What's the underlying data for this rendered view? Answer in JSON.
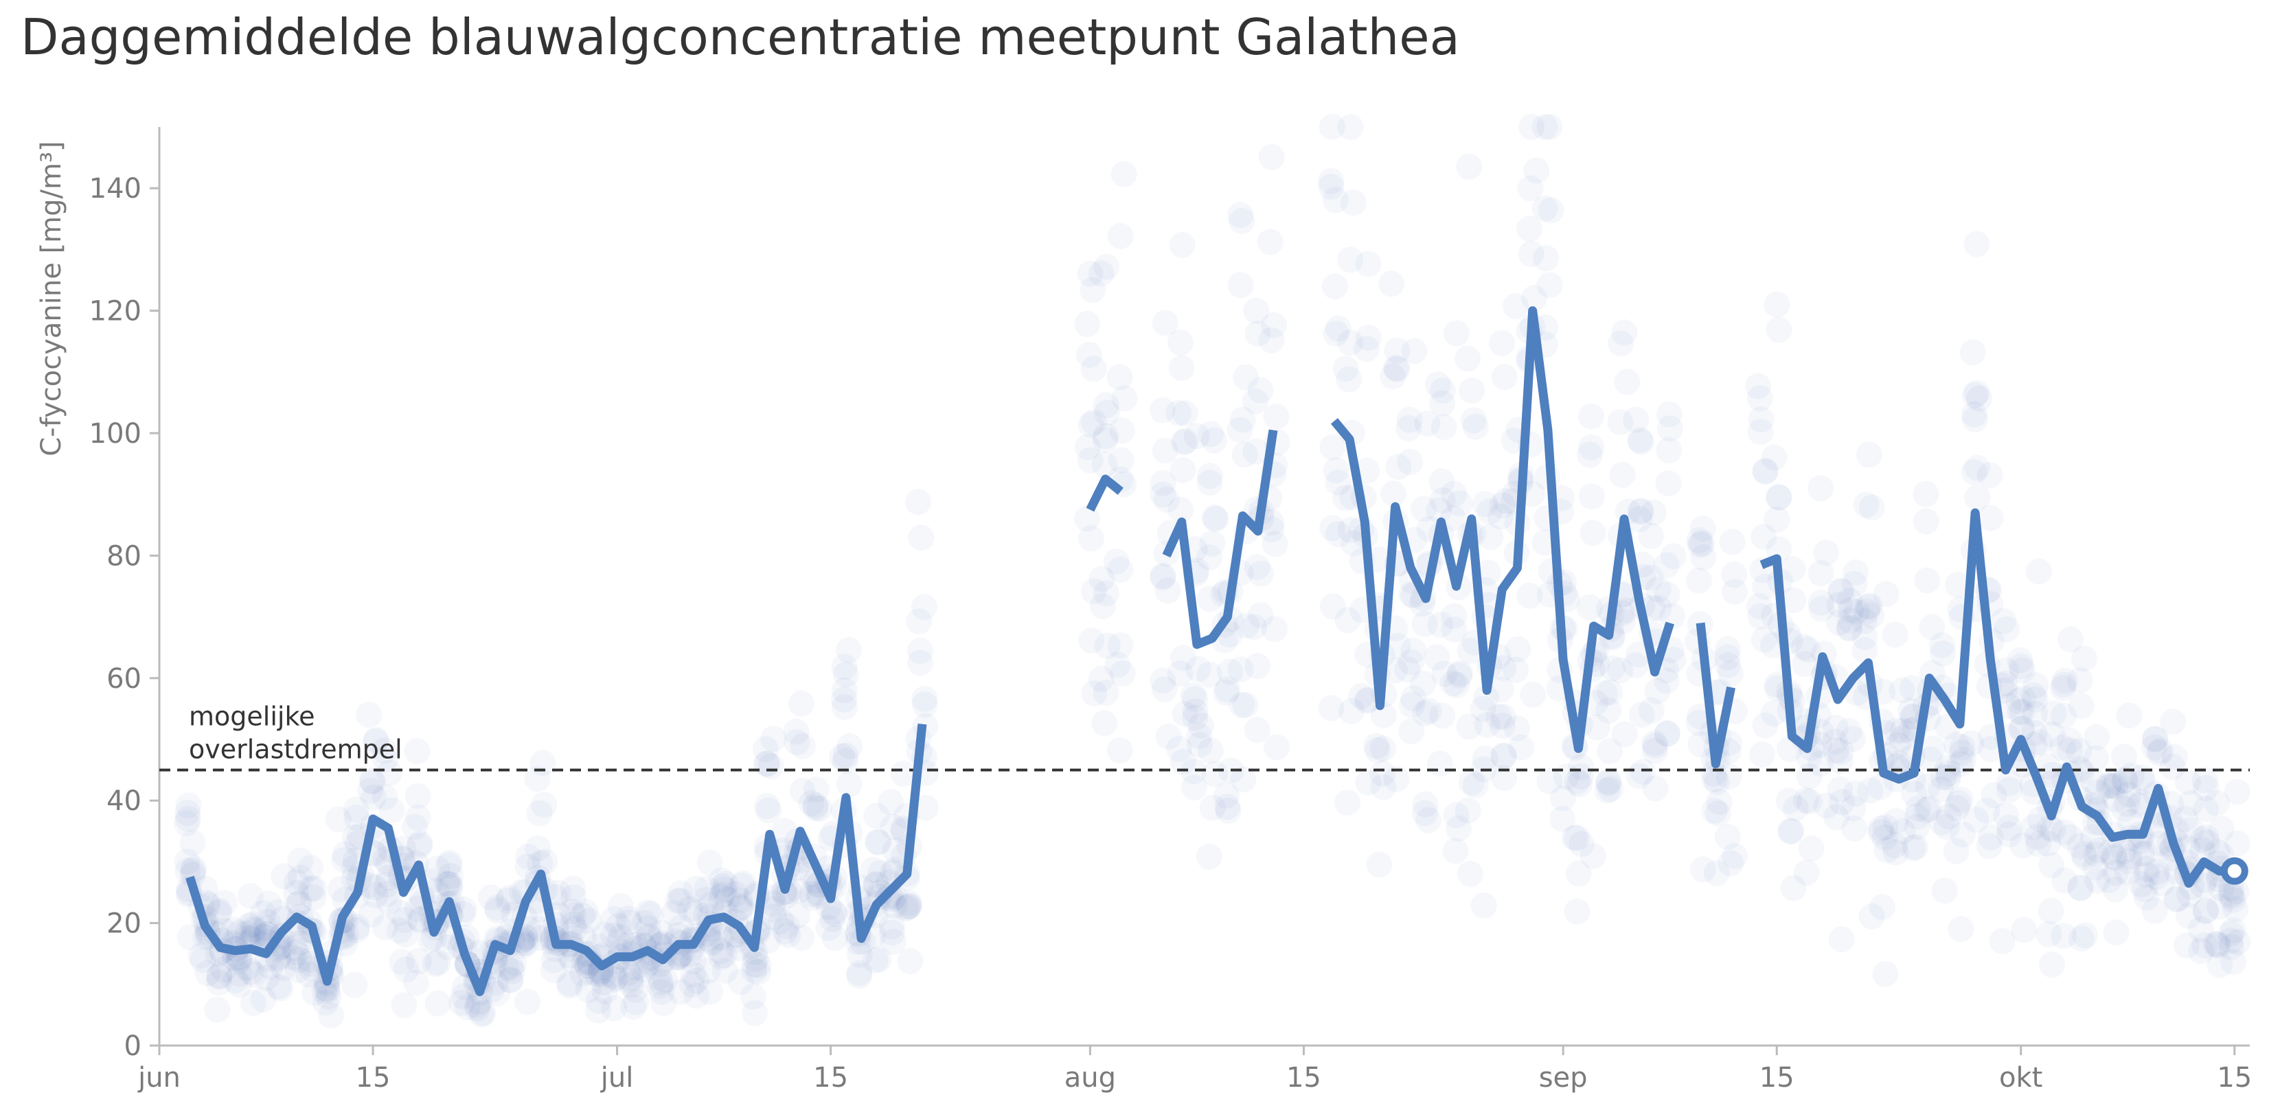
{
  "title": "Daggemiddelde blauwalgconcentratie meetpunt Galathea",
  "chart_data": {
    "type": "line",
    "title": "Daggemiddelde blauwalgconcentratie meetpunt Galathea",
    "xlabel": "",
    "ylabel": "C-fycocyanine [mg/m³]",
    "xlim": [
      "2024-06-01",
      "2024-10-16"
    ],
    "ylim": [
      0,
      150
    ],
    "x_ticks": [
      {
        "date": "2024-06-01",
        "label": "jun"
      },
      {
        "date": "2024-06-15",
        "label": "15"
      },
      {
        "date": "2024-07-01",
        "label": "jul"
      },
      {
        "date": "2024-07-15",
        "label": "15"
      },
      {
        "date": "2024-08-01",
        "label": "aug"
      },
      {
        "date": "2024-08-15",
        "label": "15"
      },
      {
        "date": "2024-09-01",
        "label": "sep"
      },
      {
        "date": "2024-09-15",
        "label": "15"
      },
      {
        "date": "2024-10-01",
        "label": "okt"
      },
      {
        "date": "2024-10-15",
        "label": "15"
      }
    ],
    "y_ticks": [
      0,
      20,
      40,
      60,
      80,
      100,
      120,
      140
    ],
    "grid": false,
    "threshold": {
      "value": 45,
      "label_line1": "mogelijke",
      "label_line2": "overlastdrempel",
      "style": "dashed",
      "color": "#333333"
    },
    "series_color": "#4e7fbf",
    "scatter_color": "#4e7fbf",
    "series": [
      {
        "values": [
          [
            "2024-06-03",
            27.5
          ],
          [
            "2024-06-04",
            19.5
          ],
          [
            "2024-06-05",
            16
          ],
          [
            "2024-06-06",
            15.5
          ],
          [
            "2024-06-07",
            15.8
          ],
          [
            "2024-06-08",
            15
          ],
          [
            "2024-06-09",
            18.5
          ],
          [
            "2024-06-10",
            21
          ],
          [
            "2024-06-11",
            19.5
          ],
          [
            "2024-06-12",
            10.5
          ],
          [
            "2024-06-13",
            21
          ],
          [
            "2024-06-14",
            25
          ],
          [
            "2024-06-15",
            37
          ],
          [
            "2024-06-16",
            35.5
          ],
          [
            "2024-06-17",
            25
          ],
          [
            "2024-06-18",
            29.5
          ],
          [
            "2024-06-19",
            18.5
          ],
          [
            "2024-06-20",
            23.5
          ],
          [
            "2024-06-21",
            15
          ],
          [
            "2024-06-22",
            8.8
          ],
          [
            "2024-06-23",
            16.5
          ],
          [
            "2024-06-24",
            15.5
          ],
          [
            "2024-06-25",
            23.5
          ],
          [
            "2024-06-26",
            28
          ],
          [
            "2024-06-27",
            16.5
          ],
          [
            "2024-06-28",
            16.5
          ],
          [
            "2024-06-29",
            15.5
          ],
          [
            "2024-06-30",
            13
          ],
          [
            "2024-07-01",
            14.5
          ],
          [
            "2024-07-02",
            14.5
          ],
          [
            "2024-07-03",
            15.5
          ],
          [
            "2024-07-04",
            14
          ],
          [
            "2024-07-05",
            16.5
          ],
          [
            "2024-07-06",
            16.5
          ],
          [
            "2024-07-07",
            20.5
          ],
          [
            "2024-07-08",
            21
          ],
          [
            "2024-07-09",
            19.5
          ],
          [
            "2024-07-10",
            16
          ],
          [
            "2024-07-11",
            34.5
          ],
          [
            "2024-07-12",
            25.5
          ],
          [
            "2024-07-13",
            35
          ],
          [
            "2024-07-14",
            29.5
          ],
          [
            "2024-07-15",
            24
          ],
          [
            "2024-07-16",
            40.5
          ],
          [
            "2024-07-17",
            17.5
          ],
          [
            "2024-07-18",
            23
          ],
          [
            "2024-07-19",
            25.5
          ],
          [
            "2024-07-20",
            28
          ],
          [
            "2024-07-21",
            52.5
          ]
        ]
      },
      {
        "values": [
          [
            "2024-08-01",
            87.5
          ],
          [
            "2024-08-02",
            92.5
          ],
          [
            "2024-08-03",
            90.5
          ]
        ]
      },
      {
        "values": [
          [
            "2024-08-06",
            80
          ],
          [
            "2024-08-07",
            85.5
          ],
          [
            "2024-08-08",
            65.5
          ],
          [
            "2024-08-09",
            66.5
          ],
          [
            "2024-08-10",
            70
          ],
          [
            "2024-08-11",
            86.5
          ],
          [
            "2024-08-12",
            84
          ],
          [
            "2024-08-13",
            100.5
          ]
        ]
      },
      {
        "values": [
          [
            "2024-08-17",
            102
          ],
          [
            "2024-08-18",
            99
          ],
          [
            "2024-08-19",
            85.5
          ],
          [
            "2024-08-20",
            55.5
          ],
          [
            "2024-08-21",
            88
          ],
          [
            "2024-08-22",
            78
          ],
          [
            "2024-08-23",
            73
          ],
          [
            "2024-08-24",
            85.5
          ],
          [
            "2024-08-25",
            75
          ],
          [
            "2024-08-26",
            86
          ],
          [
            "2024-08-27",
            58
          ],
          [
            "2024-08-28",
            74.5
          ],
          [
            "2024-08-29",
            78
          ],
          [
            "2024-08-30",
            120
          ],
          [
            "2024-08-31",
            100.5
          ],
          [
            "2024-09-01",
            63
          ],
          [
            "2024-09-02",
            48.5
          ],
          [
            "2024-09-03",
            68.5
          ],
          [
            "2024-09-04",
            67
          ],
          [
            "2024-09-05",
            86
          ],
          [
            "2024-09-06",
            72.5
          ],
          [
            "2024-09-07",
            61
          ],
          [
            "2024-09-08",
            69
          ]
        ]
      },
      {
        "values": [
          [
            "2024-09-10",
            69
          ],
          [
            "2024-09-11",
            46
          ],
          [
            "2024-09-12",
            58.5
          ]
        ]
      },
      {
        "values": [
          [
            "2024-09-14",
            78.5
          ],
          [
            "2024-09-15",
            79.5
          ],
          [
            "2024-09-16",
            50.5
          ],
          [
            "2024-09-17",
            48.5
          ],
          [
            "2024-09-18",
            63.5
          ],
          [
            "2024-09-19",
            56.5
          ],
          [
            "2024-09-20",
            60
          ],
          [
            "2024-09-21",
            62.5
          ],
          [
            "2024-09-22",
            44.5
          ],
          [
            "2024-09-23",
            43.5
          ],
          [
            "2024-09-24",
            44.5
          ],
          [
            "2024-09-25",
            60
          ],
          [
            "2024-09-26",
            56.5
          ],
          [
            "2024-09-27",
            52.5
          ],
          [
            "2024-09-28",
            87
          ],
          [
            "2024-09-29",
            63
          ],
          [
            "2024-09-30",
            45
          ],
          [
            "2024-10-01",
            50
          ],
          [
            "2024-10-02",
            44
          ],
          [
            "2024-10-03",
            37.5
          ],
          [
            "2024-10-04",
            45.5
          ],
          [
            "2024-10-05",
            39
          ],
          [
            "2024-10-06",
            37.5
          ],
          [
            "2024-10-07",
            34
          ],
          [
            "2024-10-08",
            34.5
          ],
          [
            "2024-10-09",
            34.5
          ],
          [
            "2024-10-10",
            42
          ],
          [
            "2024-10-11",
            33
          ],
          [
            "2024-10-12",
            26.5
          ],
          [
            "2024-10-13",
            30
          ],
          [
            "2024-10-14",
            28.5
          ],
          [
            "2024-10-15",
            28.5
          ]
        ]
      }
    ],
    "end_marker": {
      "date": "2024-10-15",
      "value": 28.5
    }
  }
}
